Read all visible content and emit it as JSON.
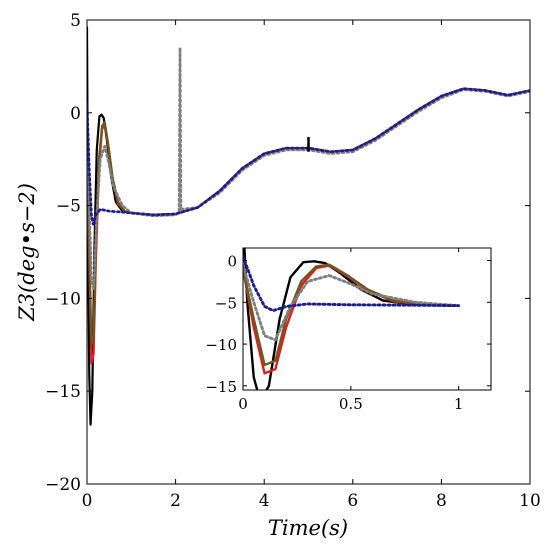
{
  "chart_data": {
    "type": "line",
    "title": "",
    "xlabel": "Time(s)",
    "ylabel": "Z3(deg•s−2)",
    "xlim": [
      0,
      10
    ],
    "ylim": [
      -20,
      5
    ],
    "xticks": [
      0,
      2,
      4,
      6,
      8,
      10
    ],
    "yticks": [
      -20,
      -15,
      -10,
      -5,
      0,
      5
    ],
    "grid": false,
    "legend": "none",
    "series": [
      {
        "color": "#000000",
        "style": "solid",
        "points": [
          [
            0.0,
            4.6
          ],
          [
            0.02,
            -5
          ],
          [
            0.05,
            -14
          ],
          [
            0.08,
            -16.8
          ],
          [
            0.12,
            -15
          ],
          [
            0.17,
            -7
          ],
          [
            0.22,
            -2
          ],
          [
            0.28,
            -0.2
          ],
          [
            0.33,
            -0.1
          ],
          [
            0.38,
            -0.3
          ],
          [
            0.45,
            -1.5
          ],
          [
            0.55,
            -3.5
          ],
          [
            0.65,
            -4.8
          ],
          [
            0.8,
            -5.3
          ],
          [
            1.0,
            -5.4
          ],
          [
            1.5,
            -5.5
          ],
          [
            2.0,
            -5.45
          ],
          [
            2.5,
            -5.1
          ],
          [
            3.0,
            -4.2
          ],
          [
            3.5,
            -3.0
          ],
          [
            4.0,
            -2.2
          ],
          [
            4.5,
            -1.9
          ],
          [
            5.0,
            -1.9
          ],
          [
            5.5,
            -2.1
          ],
          [
            6.0,
            -2.0
          ],
          [
            6.5,
            -1.4
          ],
          [
            7.0,
            -0.6
          ],
          [
            7.5,
            0.2
          ],
          [
            8.0,
            0.9
          ],
          [
            8.5,
            1.3
          ],
          [
            9.0,
            1.2
          ],
          [
            9.5,
            0.95
          ],
          [
            10.0,
            1.2
          ]
        ]
      },
      {
        "color": "#dd1f1f",
        "style": "solid",
        "points": [
          [
            0.0,
            -1
          ],
          [
            0.05,
            -8
          ],
          [
            0.1,
            -13.5
          ],
          [
            0.15,
            -13
          ],
          [
            0.2,
            -8
          ],
          [
            0.27,
            -3
          ],
          [
            0.34,
            -0.9
          ],
          [
            0.4,
            -0.6
          ],
          [
            0.48,
            -1.8
          ],
          [
            0.58,
            -3.6
          ],
          [
            0.7,
            -4.9
          ],
          [
            0.85,
            -5.3
          ],
          [
            1.0,
            -5.4
          ],
          [
            1.5,
            -5.5
          ],
          [
            2.0,
            -5.45
          ],
          [
            2.5,
            -5.1
          ],
          [
            3.0,
            -4.2
          ],
          [
            3.5,
            -3.0
          ],
          [
            4.0,
            -2.2
          ],
          [
            4.5,
            -1.9
          ],
          [
            5.0,
            -1.9
          ],
          [
            5.5,
            -2.1
          ],
          [
            6.0,
            -2.0
          ],
          [
            6.5,
            -1.4
          ],
          [
            7.0,
            -0.6
          ],
          [
            7.5,
            0.2
          ],
          [
            8.0,
            0.9
          ],
          [
            8.5,
            1.3
          ],
          [
            9.0,
            1.2
          ],
          [
            9.5,
            0.95
          ],
          [
            10.0,
            1.2
          ]
        ]
      },
      {
        "color": "#6b5a1f",
        "style": "solid",
        "points": [
          [
            0.0,
            -1
          ],
          [
            0.05,
            -7
          ],
          [
            0.1,
            -12.5
          ],
          [
            0.15,
            -12
          ],
          [
            0.2,
            -7
          ],
          [
            0.27,
            -2.5
          ],
          [
            0.34,
            -0.7
          ],
          [
            0.4,
            -0.5
          ],
          [
            0.48,
            -1.7
          ],
          [
            0.58,
            -3.5
          ],
          [
            0.7,
            -4.8
          ],
          [
            0.85,
            -5.3
          ],
          [
            1.0,
            -5.4
          ],
          [
            1.5,
            -5.5
          ],
          [
            2.0,
            -5.45
          ],
          [
            2.5,
            -5.1
          ],
          [
            3.0,
            -4.2
          ],
          [
            3.5,
            -3.0
          ],
          [
            4.0,
            -2.2
          ],
          [
            4.5,
            -1.9
          ],
          [
            5.0,
            -1.9
          ],
          [
            5.5,
            -2.1
          ],
          [
            6.0,
            -2.0
          ],
          [
            6.5,
            -1.4
          ],
          [
            7.0,
            -0.6
          ],
          [
            7.5,
            0.2
          ],
          [
            8.0,
            0.9
          ],
          [
            8.5,
            1.3
          ],
          [
            9.0,
            1.2
          ],
          [
            9.5,
            0.95
          ],
          [
            10.0,
            1.2
          ]
        ]
      },
      {
        "color": "#7f7f7f",
        "style": "dotted",
        "points": [
          [
            0.0,
            -0.5
          ],
          [
            0.05,
            -5
          ],
          [
            0.1,
            -9
          ],
          [
            0.15,
            -9.5
          ],
          [
            0.22,
            -5.5
          ],
          [
            0.3,
            -2.5
          ],
          [
            0.4,
            -1.8
          ],
          [
            0.5,
            -2.8
          ],
          [
            0.6,
            -4.0
          ],
          [
            0.8,
            -5.0
          ],
          [
            1.0,
            -5.4
          ],
          [
            1.5,
            -5.55
          ],
          [
            2.0,
            -5.5
          ],
          [
            2.08,
            -5.3
          ],
          [
            2.1,
            3.5
          ],
          [
            2.12,
            -5.2
          ],
          [
            2.5,
            -5.1
          ],
          [
            3.0,
            -4.3
          ],
          [
            3.5,
            -3.1
          ],
          [
            4.0,
            -2.3
          ],
          [
            4.5,
            -2.0
          ],
          [
            5.0,
            -2.0
          ],
          [
            5.5,
            -2.2
          ],
          [
            6.0,
            -2.1
          ],
          [
            6.5,
            -1.5
          ],
          [
            7.0,
            -0.7
          ],
          [
            7.5,
            0.1
          ],
          [
            8.0,
            0.8
          ],
          [
            8.5,
            1.25
          ],
          [
            9.0,
            1.15
          ],
          [
            9.5,
            0.9
          ],
          [
            10.0,
            1.15
          ]
        ]
      },
      {
        "color": "#1c1c8c",
        "style": "dotted",
        "points": [
          [
            0.0,
            0.5
          ],
          [
            0.05,
            -3
          ],
          [
            0.1,
            -5.5
          ],
          [
            0.14,
            -6
          ],
          [
            0.2,
            -5.5
          ],
          [
            0.3,
            -5.2
          ],
          [
            0.5,
            -5.3
          ],
          [
            0.8,
            -5.35
          ],
          [
            1.0,
            -5.4
          ],
          [
            1.5,
            -5.5
          ],
          [
            2.0,
            -5.45
          ],
          [
            2.5,
            -5.1
          ],
          [
            3.0,
            -4.2
          ],
          [
            3.5,
            -3.0
          ],
          [
            4.0,
            -2.2
          ],
          [
            4.5,
            -1.9
          ],
          [
            5.0,
            -1.9
          ],
          [
            5.5,
            -2.1
          ],
          [
            6.0,
            -2.0
          ],
          [
            6.5,
            -1.4
          ],
          [
            7.0,
            -0.6
          ],
          [
            7.5,
            0.2
          ],
          [
            8.0,
            0.9
          ],
          [
            8.5,
            1.3
          ],
          [
            9.0,
            1.2
          ],
          [
            9.5,
            0.95
          ],
          [
            10.0,
            1.2
          ]
        ]
      }
    ],
    "annotations": [
      {
        "type": "tick-mark",
        "x": 5.0,
        "y_from": -2.1,
        "y_to": -1.3,
        "color": "#000000"
      }
    ],
    "inset": {
      "xlim": [
        0,
        1.15
      ],
      "ylim": [
        -15.5,
        1.5
      ],
      "xticks": [
        0,
        0.5,
        1
      ],
      "yticks": [
        0,
        -5,
        -10,
        -15
      ]
    }
  }
}
